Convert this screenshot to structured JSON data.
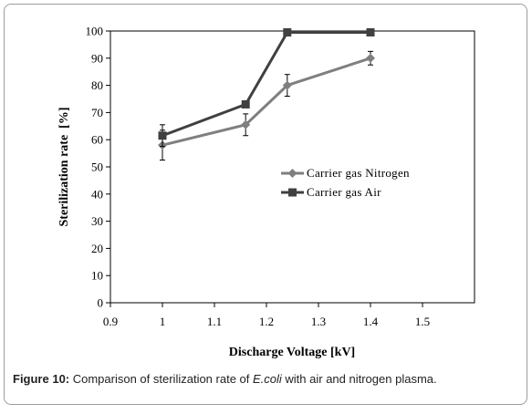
{
  "chart_data": {
    "type": "line",
    "xlabel": "Discharge Voltage [kV]",
    "ylabel": "Sterilization rate  [%]",
    "xlim": [
      0.9,
      1.6
    ],
    "ylim": [
      0,
      100
    ],
    "x_ticks": [
      "0.9",
      "1",
      "1.1",
      "1.2",
      "1.3",
      "1.4",
      "1.5"
    ],
    "y_ticks": [
      "0",
      "10",
      "20",
      "30",
      "40",
      "50",
      "60",
      "70",
      "80",
      "90",
      "100"
    ],
    "grid": false,
    "legend_position": "right-center",
    "series": [
      {
        "name": "Carrier gas Nitrogen",
        "marker": "diamond",
        "color": "#7f7f7f",
        "x": [
          1.0,
          1.16,
          1.24,
          1.4
        ],
        "y": [
          58,
          65.5,
          80,
          90
        ],
        "error": [
          5.5,
          4,
          4,
          2.5
        ]
      },
      {
        "name": "Carrier gas Air",
        "marker": "square",
        "color": "#404040",
        "x": [
          1.0,
          1.16,
          1.24,
          1.4
        ],
        "y": [
          61.5,
          73,
          99.5,
          99.5
        ],
        "error": [
          4,
          0,
          0,
          0
        ]
      }
    ]
  },
  "caption": {
    "label": "Figure 10:",
    "text_before": " Comparison of sterilization rate of ",
    "organism": "E.coli",
    "text_after": " with air and nitrogen plasma."
  }
}
